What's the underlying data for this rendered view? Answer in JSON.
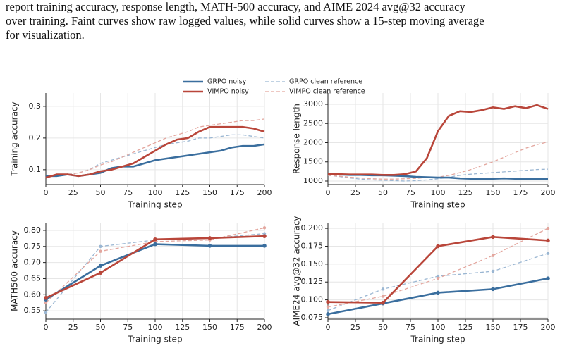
{
  "caption": [
    "report training accuracy, response length, MATH-500 accuracy, and AIME 2024 avg@32 accuracy",
    "over training. Faint curves show raw logged values, while solid curves show a 15-step moving average",
    "for visualization."
  ],
  "chart_data": [
    {
      "type": "line",
      "xlabel": "Training step",
      "ylabel": "Training accuracy",
      "x": [
        0,
        10,
        20,
        30,
        40,
        50,
        60,
        70,
        80,
        90,
        100,
        110,
        120,
        130,
        140,
        150,
        160,
        170,
        180,
        190,
        200
      ],
      "series": [
        {
          "name": "GRPO noisy",
          "color": "#3a6e9e",
          "style": "solid",
          "values": [
            0.08,
            0.08,
            0.085,
            0.08,
            0.085,
            0.09,
            0.105,
            0.11,
            0.11,
            0.12,
            0.13,
            0.135,
            0.14,
            0.145,
            0.15,
            0.155,
            0.16,
            0.17,
            0.175,
            0.175,
            0.18
          ]
        },
        {
          "name": "VIMPO noisy",
          "color": "#b9463a",
          "style": "solid",
          "values": [
            0.075,
            0.085,
            0.085,
            0.08,
            0.085,
            0.095,
            0.1,
            0.11,
            0.12,
            0.14,
            0.16,
            0.18,
            0.195,
            0.2,
            0.22,
            0.235,
            0.235,
            0.235,
            0.235,
            0.23,
            0.22
          ]
        },
        {
          "name": "GRPO clean reference",
          "color": "#9ab6d2",
          "style": "dashed",
          "values": [
            0.08,
            0.08,
            0.085,
            0.09,
            0.1,
            0.12,
            0.13,
            0.14,
            0.15,
            0.16,
            0.17,
            0.18,
            0.185,
            0.19,
            0.2,
            0.2,
            0.205,
            0.21,
            0.21,
            0.205,
            0.2
          ]
        },
        {
          "name": "VIMPO clean reference",
          "color": "#e3a69e",
          "style": "dashed",
          "values": [
            0.08,
            0.08,
            0.085,
            0.09,
            0.1,
            0.115,
            0.125,
            0.14,
            0.155,
            0.17,
            0.185,
            0.2,
            0.21,
            0.22,
            0.235,
            0.24,
            0.245,
            0.25,
            0.255,
            0.255,
            0.26
          ]
        }
      ],
      "xlim": [
        0,
        200
      ],
      "ylim": [
        0.053,
        0.342
      ],
      "xticks": [
        0,
        25,
        50,
        75,
        100,
        125,
        150,
        175,
        200
      ],
      "yticks": [
        0.1,
        0.2,
        0.3
      ],
      "grid": true,
      "markers": false
    },
    {
      "type": "line",
      "xlabel": "Training step",
      "ylabel": "Response length",
      "x": [
        0,
        10,
        20,
        30,
        40,
        50,
        60,
        70,
        80,
        90,
        100,
        110,
        120,
        130,
        140,
        150,
        160,
        170,
        180,
        190,
        200
      ],
      "series": [
        {
          "name": "GRPO noisy",
          "color": "#3a6e9e",
          "style": "solid",
          "values": [
            1170,
            1170,
            1160,
            1160,
            1150,
            1150,
            1140,
            1130,
            1110,
            1100,
            1090,
            1090,
            1070,
            1060,
            1060,
            1060,
            1070,
            1060,
            1060,
            1060,
            1060
          ]
        },
        {
          "name": "VIMPO noisy",
          "color": "#b9463a",
          "style": "solid",
          "values": [
            1180,
            1180,
            1170,
            1170,
            1170,
            1160,
            1160,
            1180,
            1250,
            1600,
            2300,
            2700,
            2820,
            2800,
            2850,
            2920,
            2880,
            2950,
            2900,
            2980,
            2880
          ]
        },
        {
          "name": "GRPO clean reference",
          "color": "#9ab6d2",
          "style": "dashed",
          "values": [
            1150,
            1120,
            1080,
            1050,
            1030,
            1020,
            1010,
            1000,
            1010,
            1030,
            1060,
            1100,
            1150,
            1180,
            1200,
            1220,
            1240,
            1260,
            1280,
            1300,
            1310
          ]
        },
        {
          "name": "VIMPO clean reference",
          "color": "#e3a69e",
          "style": "dashed",
          "values": [
            1150,
            1130,
            1100,
            1080,
            1060,
            1050,
            1050,
            1060,
            1070,
            1090,
            1100,
            1150,
            1220,
            1300,
            1400,
            1500,
            1620,
            1740,
            1860,
            1950,
            2020
          ]
        }
      ],
      "xlim": [
        0,
        200
      ],
      "ylim": [
        908,
        3294
      ],
      "xticks": [
        0,
        25,
        50,
        75,
        100,
        125,
        150,
        175,
        200
      ],
      "yticks": [
        1000,
        1500,
        2000,
        2500,
        3000
      ],
      "grid": true,
      "markers": false
    },
    {
      "type": "line",
      "xlabel": "Training step",
      "ylabel": "MATH500 accuracy",
      "x": [
        0,
        50,
        100,
        150,
        200
      ],
      "series": [
        {
          "name": "GRPO noisy",
          "color": "#3a6e9e",
          "style": "solid",
          "values": [
            0.585,
            0.69,
            0.757,
            0.752,
            0.752
          ]
        },
        {
          "name": "VIMPO noisy",
          "color": "#b9463a",
          "style": "solid",
          "values": [
            0.59,
            0.668,
            0.772,
            0.776,
            0.782
          ]
        },
        {
          "name": "GRPO clean reference",
          "color": "#9ab6d2",
          "style": "dashed",
          "values": [
            0.545,
            0.75,
            0.77,
            0.775,
            0.79
          ]
        },
        {
          "name": "VIMPO clean reference",
          "color": "#e3a69e",
          "style": "dashed",
          "values": [
            0.575,
            0.735,
            0.765,
            0.77,
            0.808
          ]
        }
      ],
      "xlim": [
        0,
        200
      ],
      "ylim": [
        0.524,
        0.824
      ],
      "xticks": [
        0,
        25,
        50,
        75,
        100,
        125,
        150,
        175,
        200
      ],
      "yticks": [
        0.55,
        {
          "value": 0.6,
          "label": "0.60"
        },
        0.65,
        {
          "value": 0.7,
          "label": "0.70"
        },
        0.75,
        {
          "value": 0.8,
          "label": "0.80"
        }
      ],
      "grid": true,
      "markers": true
    },
    {
      "type": "line",
      "xlabel": "Training step",
      "ylabel": "AIME24 avg@32 accuracy",
      "x": [
        0,
        50,
        100,
        150,
        200
      ],
      "series": [
        {
          "name": "GRPO noisy",
          "color": "#3a6e9e",
          "style": "solid",
          "values": [
            0.08,
            0.095,
            0.11,
            0.115,
            0.13
          ]
        },
        {
          "name": "VIMPO noisy",
          "color": "#b9463a",
          "style": "solid",
          "values": [
            0.097,
            0.096,
            0.175,
            0.188,
            0.183
          ]
        },
        {
          "name": "GRPO clean reference",
          "color": "#9ab6d2",
          "style": "dashed",
          "values": [
            0.085,
            0.115,
            0.133,
            0.14,
            0.165
          ]
        },
        {
          "name": "VIMPO clean reference",
          "color": "#e3a69e",
          "style": "dashed",
          "values": [
            0.09,
            0.105,
            0.13,
            0.162,
            0.2
          ]
        }
      ],
      "xlim": [
        0,
        200
      ],
      "ylim": [
        0.073,
        0.208
      ],
      "xticks": [
        0,
        25,
        50,
        75,
        100,
        125,
        150,
        175,
        200
      ],
      "yticks": [
        {
          "value": 0.075,
          "label": "0.075"
        },
        {
          "value": 0.1,
          "label": "0.100"
        },
        {
          "value": 0.125,
          "label": "0.125"
        },
        {
          "value": 0.15,
          "label": "0.150"
        },
        {
          "value": 0.175,
          "label": "0.175"
        },
        {
          "value": 0.2,
          "label": "0.200"
        }
      ],
      "grid": true,
      "markers": true
    }
  ]
}
